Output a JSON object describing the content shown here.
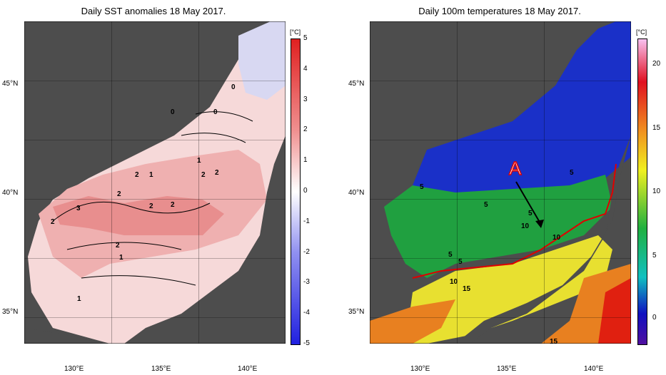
{
  "left_map": {
    "title": "Daily SST anomalies 18 May 2017.",
    "lat_labels": [
      "45°N",
      "40°N",
      "35°N"
    ],
    "lon_labels": [
      "130°E",
      "135°E",
      "140°E"
    ],
    "unit": "[°C]",
    "colorbar_ticks": [
      "5",
      "4",
      "3",
      "2",
      "1",
      "0",
      "-1",
      "-2",
      "-3",
      "-4",
      "-5"
    ],
    "contour_labels": [
      "0",
      "0",
      "0",
      "1",
      "2",
      "2",
      "1",
      "2",
      "2",
      "3",
      "2",
      "2",
      "2",
      "2",
      "1",
      "1"
    ],
    "colors": {
      "positive": "#e85050",
      "negative": "#4040e0",
      "land": "#505050",
      "lake": "#b0b0b0"
    }
  },
  "right_map": {
    "title": "Daily 100m temperatures 18 May 2017.",
    "lat_labels": [
      "45°N",
      "40°N",
      "35°N"
    ],
    "lon_labels": [
      "130°E",
      "135°E",
      "140°E"
    ],
    "unit": "[°C]",
    "colorbar_ticks": [
      "20",
      "15",
      "10",
      "5",
      "0"
    ],
    "contour_labels": [
      "5",
      "5",
      "5",
      "5",
      "10",
      "10",
      "5",
      "5",
      "10",
      "15",
      "15"
    ],
    "annotation": "A",
    "colors": {
      "cold": "#1010c0",
      "mid": "#20a040",
      "warm": "#f0e020",
      "hot": "#e02010",
      "front": "#e00000",
      "land": "#505050"
    }
  }
}
